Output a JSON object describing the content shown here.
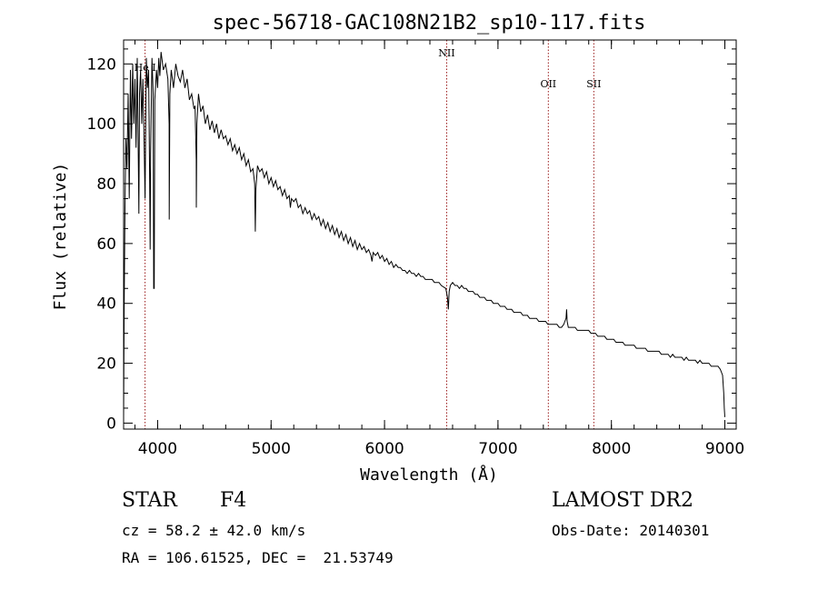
{
  "chart_data": {
    "type": "line",
    "title": "spec-56718-GAC108N21B2_sp10-117.fits",
    "xlabel": "Wavelength (Å)",
    "ylabel": "Flux (relative)",
    "xlim": [
      3700,
      9100
    ],
    "ylim": [
      -2,
      128
    ],
    "xticks": [
      4000,
      5000,
      6000,
      7000,
      8000,
      9000
    ],
    "yticks": [
      0,
      20,
      40,
      60,
      80,
      100,
      120
    ],
    "grid": false,
    "line_markers": [
      {
        "label": "He I",
        "x": 3889
      },
      {
        "label": "NII",
        "x": 6548
      },
      {
        "label": "OII",
        "x": 7444
      },
      {
        "label": "SII",
        "x": 7845
      }
    ],
    "series": [
      {
        "name": "flux",
        "color": "#000000",
        "points": [
          [
            3700,
            2
          ],
          [
            3705,
            38
          ],
          [
            3712,
            72
          ],
          [
            3720,
            95
          ],
          [
            3730,
            85
          ],
          [
            3740,
            110
          ],
          [
            3750,
            75
          ],
          [
            3760,
            118
          ],
          [
            3770,
            95
          ],
          [
            3780,
            120
          ],
          [
            3790,
            100
          ],
          [
            3800,
            115
          ],
          [
            3810,
            92
          ],
          [
            3820,
            122
          ],
          [
            3830,
            88
          ],
          [
            3835,
            70
          ],
          [
            3840,
            110
          ],
          [
            3850,
            118
          ],
          [
            3860,
            100
          ],
          [
            3870,
            115
          ],
          [
            3880,
            95
          ],
          [
            3889,
            75
          ],
          [
            3900,
            122
          ],
          [
            3910,
            112
          ],
          [
            3920,
            118
          ],
          [
            3930,
            80
          ],
          [
            3934,
            58
          ],
          [
            3938,
            90
          ],
          [
            3950,
            122
          ],
          [
            3960,
            110
          ],
          [
            3965,
            45
          ],
          [
            3970,
            45
          ],
          [
            3975,
            108
          ],
          [
            3990,
            118
          ],
          [
            4000,
            112
          ],
          [
            4010,
            122
          ],
          [
            4020,
            116
          ],
          [
            4030,
            124
          ],
          [
            4050,
            118
          ],
          [
            4070,
            120
          ],
          [
            4090,
            115
          ],
          [
            4101,
            100
          ],
          [
            4102,
            68
          ],
          [
            4108,
            110
          ],
          [
            4120,
            118
          ],
          [
            4140,
            112
          ],
          [
            4160,
            120
          ],
          [
            4180,
            116
          ],
          [
            4200,
            114
          ],
          [
            4220,
            118
          ],
          [
            4240,
            112
          ],
          [
            4260,
            115
          ],
          [
            4280,
            108
          ],
          [
            4300,
            110
          ],
          [
            4320,
            105
          ],
          [
            4330,
            106
          ],
          [
            4340,
            88
          ],
          [
            4341,
            72
          ],
          [
            4346,
            100
          ],
          [
            4360,
            110
          ],
          [
            4380,
            104
          ],
          [
            4400,
            106
          ],
          [
            4420,
            100
          ],
          [
            4440,
            103
          ],
          [
            4460,
            98
          ],
          [
            4480,
            101
          ],
          [
            4500,
            97
          ],
          [
            4520,
            100
          ],
          [
            4540,
            95
          ],
          [
            4560,
            98
          ],
          [
            4580,
            95
          ],
          [
            4600,
            96
          ],
          [
            4620,
            93
          ],
          [
            4640,
            95
          ],
          [
            4660,
            91
          ],
          [
            4680,
            93
          ],
          [
            4700,
            90
          ],
          [
            4720,
            92
          ],
          [
            4740,
            88
          ],
          [
            4760,
            90
          ],
          [
            4780,
            86
          ],
          [
            4800,
            88
          ],
          [
            4820,
            84
          ],
          [
            4840,
            85
          ],
          [
            4855,
            80
          ],
          [
            4861,
            64
          ],
          [
            4866,
            78
          ],
          [
            4880,
            86
          ],
          [
            4900,
            84
          ],
          [
            4920,
            85
          ],
          [
            4940,
            82
          ],
          [
            4960,
            84
          ],
          [
            4980,
            80
          ],
          [
            5000,
            82
          ],
          [
            5020,
            79
          ],
          [
            5040,
            81
          ],
          [
            5060,
            78
          ],
          [
            5080,
            79
          ],
          [
            5100,
            76
          ],
          [
            5120,
            78
          ],
          [
            5140,
            75
          ],
          [
            5160,
            76
          ],
          [
            5170,
            72
          ],
          [
            5180,
            75
          ],
          [
            5200,
            74
          ],
          [
            5220,
            75
          ],
          [
            5240,
            72
          ],
          [
            5260,
            73
          ],
          [
            5280,
            70
          ],
          [
            5300,
            72
          ],
          [
            5320,
            70
          ],
          [
            5340,
            71
          ],
          [
            5360,
            68
          ],
          [
            5380,
            70
          ],
          [
            5400,
            68
          ],
          [
            5420,
            69
          ],
          [
            5440,
            66
          ],
          [
            5460,
            68
          ],
          [
            5480,
            65
          ],
          [
            5500,
            67
          ],
          [
            5520,
            64
          ],
          [
            5540,
            66
          ],
          [
            5560,
            63
          ],
          [
            5580,
            65
          ],
          [
            5600,
            62
          ],
          [
            5620,
            64
          ],
          [
            5640,
            61
          ],
          [
            5660,
            63
          ],
          [
            5680,
            60
          ],
          [
            5700,
            62
          ],
          [
            5720,
            59
          ],
          [
            5740,
            61
          ],
          [
            5760,
            58
          ],
          [
            5780,
            60
          ],
          [
            5800,
            58
          ],
          [
            5820,
            59
          ],
          [
            5840,
            57
          ],
          [
            5860,
            58
          ],
          [
            5880,
            56
          ],
          [
            5890,
            54
          ],
          [
            5900,
            57
          ],
          [
            5920,
            56
          ],
          [
            5940,
            57
          ],
          [
            5960,
            55
          ],
          [
            5980,
            56
          ],
          [
            6000,
            54
          ],
          [
            6020,
            55
          ],
          [
            6040,
            53
          ],
          [
            6060,
            54
          ],
          [
            6080,
            52
          ],
          [
            6100,
            53
          ],
          [
            6120,
            52
          ],
          [
            6140,
            52
          ],
          [
            6160,
            51
          ],
          [
            6180,
            51
          ],
          [
            6200,
            50
          ],
          [
            6220,
            51
          ],
          [
            6240,
            50
          ],
          [
            6260,
            50
          ],
          [
            6280,
            49
          ],
          [
            6300,
            50
          ],
          [
            6320,
            49
          ],
          [
            6340,
            49
          ],
          [
            6360,
            48
          ],
          [
            6380,
            48
          ],
          [
            6400,
            48
          ],
          [
            6420,
            48
          ],
          [
            6440,
            47
          ],
          [
            6460,
            47
          ],
          [
            6480,
            47
          ],
          [
            6500,
            46
          ],
          [
            6540,
            45
          ],
          [
            6555,
            42
          ],
          [
            6563,
            38
          ],
          [
            6570,
            44
          ],
          [
            6580,
            46
          ],
          [
            6600,
            47
          ],
          [
            6620,
            46
          ],
          [
            6640,
            46
          ],
          [
            6660,
            45
          ],
          [
            6680,
            46
          ],
          [
            6700,
            45
          ],
          [
            6720,
            45
          ],
          [
            6740,
            44
          ],
          [
            6760,
            44
          ],
          [
            6780,
            44
          ],
          [
            6800,
            43
          ],
          [
            6820,
            43
          ],
          [
            6840,
            42
          ],
          [
            6860,
            42
          ],
          [
            6880,
            42
          ],
          [
            6900,
            41
          ],
          [
            6920,
            41
          ],
          [
            6940,
            41
          ],
          [
            6960,
            40
          ],
          [
            6980,
            40
          ],
          [
            7000,
            40
          ],
          [
            7020,
            39
          ],
          [
            7040,
            39
          ],
          [
            7060,
            39
          ],
          [
            7080,
            38
          ],
          [
            7100,
            38
          ],
          [
            7120,
            38
          ],
          [
            7140,
            37
          ],
          [
            7160,
            37
          ],
          [
            7180,
            37
          ],
          [
            7200,
            37
          ],
          [
            7220,
            36
          ],
          [
            7240,
            36
          ],
          [
            7260,
            36
          ],
          [
            7280,
            35
          ],
          [
            7300,
            35
          ],
          [
            7320,
            35
          ],
          [
            7340,
            35
          ],
          [
            7360,
            34
          ],
          [
            7380,
            34
          ],
          [
            7400,
            34
          ],
          [
            7420,
            34
          ],
          [
            7440,
            33
          ],
          [
            7460,
            33
          ],
          [
            7480,
            33
          ],
          [
            7500,
            33
          ],
          [
            7520,
            33
          ],
          [
            7540,
            32
          ],
          [
            7560,
            32
          ],
          [
            7580,
            33
          ],
          [
            7590,
            34
          ],
          [
            7600,
            35
          ],
          [
            7605,
            38
          ],
          [
            7610,
            34
          ],
          [
            7620,
            32
          ],
          [
            7640,
            32
          ],
          [
            7660,
            32
          ],
          [
            7680,
            32
          ],
          [
            7700,
            31
          ],
          [
            7720,
            31
          ],
          [
            7740,
            31
          ],
          [
            7760,
            31
          ],
          [
            7780,
            31
          ],
          [
            7800,
            31
          ],
          [
            7820,
            30
          ],
          [
            7840,
            30
          ],
          [
            7860,
            30
          ],
          [
            7880,
            29
          ],
          [
            7900,
            29
          ],
          [
            7920,
            29
          ],
          [
            7940,
            29
          ],
          [
            7960,
            28
          ],
          [
            7980,
            28
          ],
          [
            8000,
            28
          ],
          [
            8020,
            28
          ],
          [
            8040,
            27
          ],
          [
            8060,
            27
          ],
          [
            8080,
            27
          ],
          [
            8100,
            27
          ],
          [
            8120,
            26
          ],
          [
            8140,
            26
          ],
          [
            8160,
            26
          ],
          [
            8180,
            26
          ],
          [
            8200,
            26
          ],
          [
            8220,
            25
          ],
          [
            8240,
            25
          ],
          [
            8260,
            25
          ],
          [
            8280,
            25
          ],
          [
            8300,
            25
          ],
          [
            8320,
            24
          ],
          [
            8340,
            24
          ],
          [
            8360,
            24
          ],
          [
            8380,
            24
          ],
          [
            8400,
            24
          ],
          [
            8420,
            24
          ],
          [
            8440,
            23
          ],
          [
            8460,
            23
          ],
          [
            8480,
            23
          ],
          [
            8500,
            23
          ],
          [
            8520,
            22
          ],
          [
            8540,
            23
          ],
          [
            8560,
            22
          ],
          [
            8580,
            22
          ],
          [
            8600,
            22
          ],
          [
            8620,
            22
          ],
          [
            8640,
            21
          ],
          [
            8660,
            22
          ],
          [
            8680,
            21
          ],
          [
            8700,
            21
          ],
          [
            8720,
            21
          ],
          [
            8740,
            21
          ],
          [
            8760,
            20
          ],
          [
            8780,
            21
          ],
          [
            8800,
            20
          ],
          [
            8820,
            20
          ],
          [
            8840,
            20
          ],
          [
            8860,
            20
          ],
          [
            8880,
            19
          ],
          [
            8900,
            19
          ],
          [
            8920,
            19
          ],
          [
            8940,
            19
          ],
          [
            8960,
            18
          ],
          [
            8980,
            16
          ],
          [
            8990,
            10
          ],
          [
            8995,
            5
          ],
          [
            9000,
            2
          ]
        ]
      }
    ]
  },
  "info": {
    "class": "STAR",
    "subclass": "F4",
    "survey": "LAMOST DR2",
    "cz": "cz = 58.2 ± 42.0 km/s",
    "obs_date": "Obs-Date: 20140301",
    "coords": "RA = 106.61525, DEC =  21.53749"
  }
}
